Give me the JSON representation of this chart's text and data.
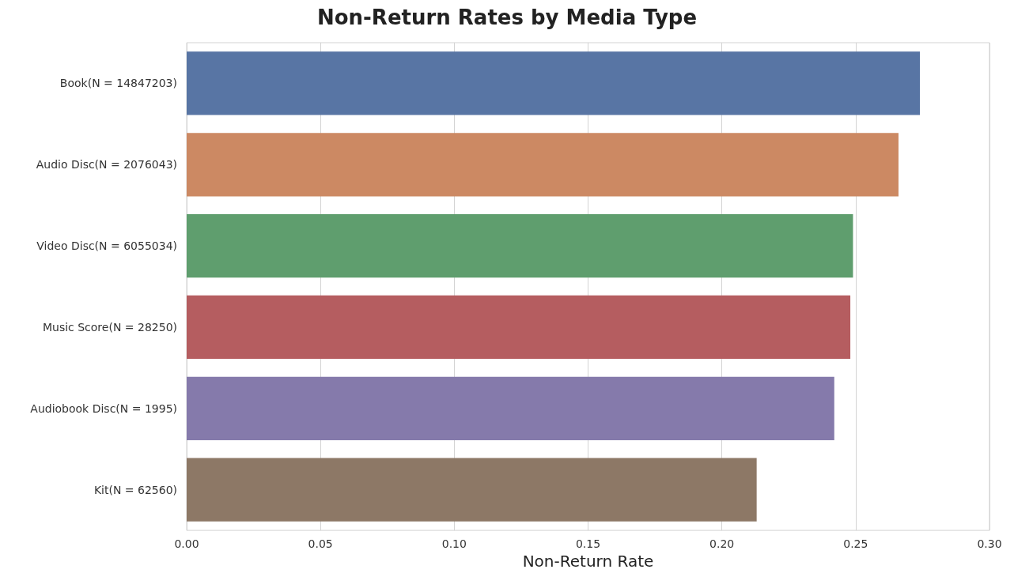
{
  "chart_data": {
    "type": "bar",
    "orientation": "horizontal",
    "title": "Non-Return Rates by Media Type",
    "xlabel": "Non-Return Rate",
    "categories": [
      "Book(N = 14847203)",
      "Audio Disc(N = 2076043)",
      "Video Disc(N = 6055034)",
      "Music Score(N = 28250)",
      "Audiobook Disc(N = 1995)",
      "Kit(N = 62560)"
    ],
    "values": [
      0.274,
      0.266,
      0.249,
      0.248,
      0.242,
      0.213
    ],
    "colors": [
      "#5875a4",
      "#cc8963",
      "#5f9e6e",
      "#b55d60",
      "#857aab",
      "#8d7866"
    ],
    "xlim": [
      0,
      0.3
    ],
    "xticks": [
      {
        "value": 0,
        "label": "0.00"
      },
      0.05,
      {
        "value": 0.1,
        "label": "0.10"
      },
      0.15,
      {
        "value": 0.2,
        "label": "0.20"
      },
      0.25,
      {
        "value": 0.3,
        "label": "0.30"
      }
    ],
    "grid": "x"
  }
}
